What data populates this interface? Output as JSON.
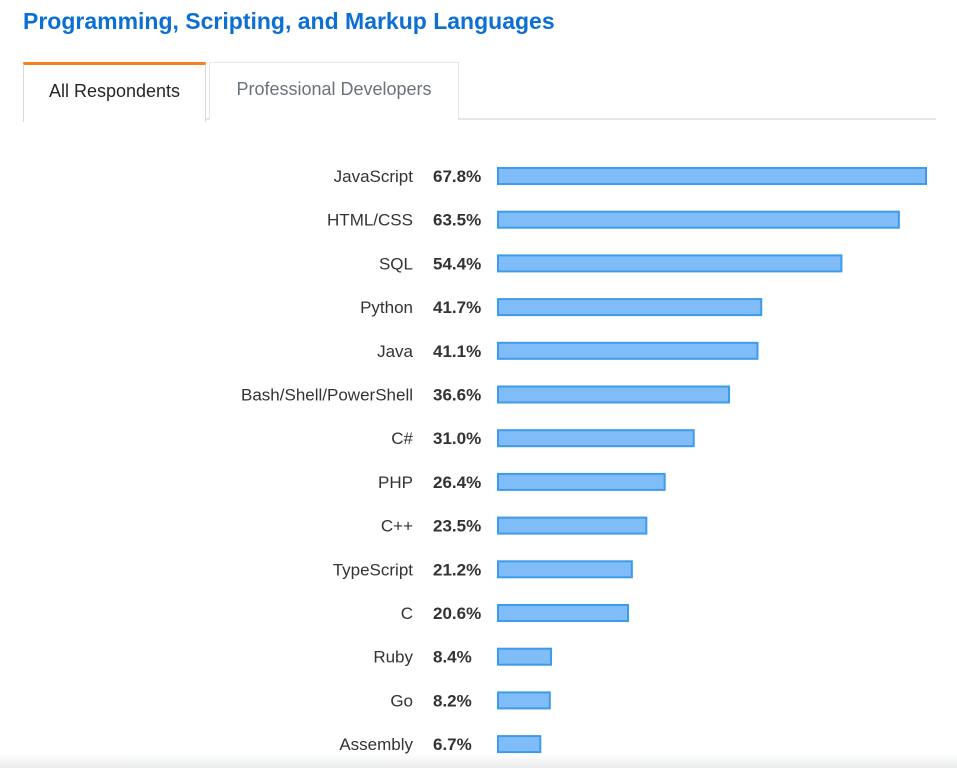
{
  "title": "Programming, Scripting, and Markup Languages",
  "tabs": [
    {
      "label": "All Respondents",
      "active": true
    },
    {
      "label": "Professional Developers",
      "active": false
    }
  ],
  "colors": {
    "title": "#0c6fd3",
    "tab_active_border": "#f48024",
    "bar_fill": "#80bdf8",
    "bar_stroke": "#3d9be9"
  },
  "chart_data": {
    "type": "bar",
    "orientation": "horizontal",
    "categories": [
      "JavaScript",
      "HTML/CSS",
      "SQL",
      "Python",
      "Java",
      "Bash/Shell/PowerShell",
      "C#",
      "PHP",
      "C++",
      "TypeScript",
      "C",
      "Ruby",
      "Go",
      "Assembly"
    ],
    "values": [
      67.8,
      63.5,
      54.4,
      41.7,
      41.1,
      36.6,
      31.0,
      26.4,
      23.5,
      21.2,
      20.6,
      8.4,
      8.2,
      6.7
    ],
    "value_labels": [
      "67.8%",
      "63.5%",
      "54.4%",
      "41.7%",
      "41.1%",
      "36.6%",
      "31.0%",
      "26.4%",
      "23.5%",
      "21.2%",
      "20.6%",
      "8.4%",
      "8.2%",
      "6.7%"
    ],
    "unit": "%",
    "xlim": [
      0,
      67.8
    ],
    "grid": false
  }
}
